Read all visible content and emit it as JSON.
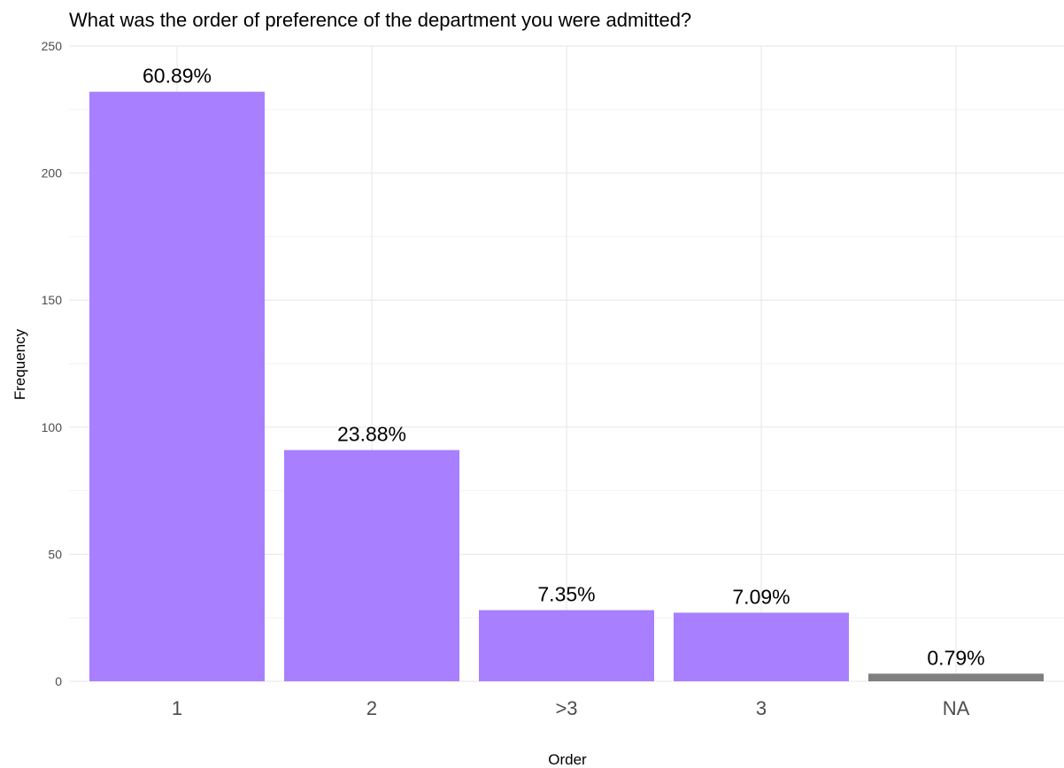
{
  "chart_data": {
    "type": "bar",
    "title": "What was the order of preference of the department you were admitted?",
    "xlabel": "Order",
    "ylabel": "Frequency",
    "categories": [
      "1",
      "2",
      ">3",
      "3",
      "NA"
    ],
    "values": [
      232,
      91,
      28,
      27,
      3
    ],
    "data_labels": [
      "60.89%",
      "23.88%",
      "7.35%",
      "7.09%",
      "0.79%"
    ],
    "bar_colors": [
      "#a87fff",
      "#a87fff",
      "#a87fff",
      "#a87fff",
      "#7f7f7f"
    ],
    "ylim": [
      0,
      250
    ],
    "yticks": [
      0,
      50,
      100,
      150,
      200,
      250
    ],
    "grid": true,
    "legend": "none"
  }
}
